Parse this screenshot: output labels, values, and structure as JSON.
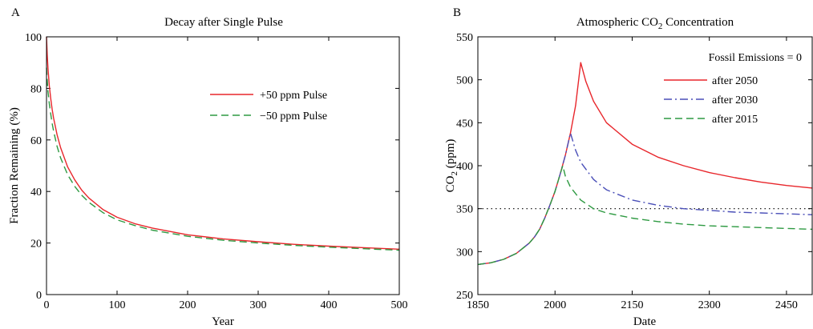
{
  "colors": {
    "red": "#e8262b",
    "green": "#2e9a42",
    "blue": "#4a4fb8",
    "ref": "#000000"
  },
  "chart_data": [
    {
      "type": "line",
      "panel_letter": "A",
      "title": "Decay after Single Pulse",
      "xlabel": "Year",
      "ylabel": "Fraction Remaining (%)",
      "xlim": [
        0,
        500
      ],
      "ylim": [
        0,
        100
      ],
      "xticks": [
        0,
        100,
        200,
        300,
        400,
        500
      ],
      "yticks": [
        0,
        20,
        40,
        60,
        80,
        100
      ],
      "legend_position": "upper-right",
      "series": [
        {
          "name": "+50 ppm Pulse",
          "color": "red",
          "dash": "solid",
          "x": [
            0,
            1,
            2,
            4,
            6,
            8,
            10,
            15,
            20,
            30,
            40,
            50,
            60,
            80,
            100,
            125,
            150,
            200,
            250,
            300,
            350,
            400,
            450,
            500
          ],
          "y": [
            100,
            93,
            88,
            81,
            76,
            72,
            68.5,
            62,
            57,
            49.5,
            44.5,
            40.5,
            37.5,
            33,
            30,
            27.5,
            25.8,
            23.2,
            21.6,
            20.5,
            19.5,
            18.8,
            18.2,
            17.6
          ]
        },
        {
          "name": "−50 ppm Pulse",
          "color": "green",
          "dash": "dashed",
          "x": [
            0,
            1,
            2,
            4,
            6,
            8,
            10,
            15,
            20,
            30,
            40,
            50,
            60,
            80,
            100,
            125,
            150,
            200,
            250,
            300,
            350,
            400,
            450,
            500
          ],
          "y": [
            88,
            83,
            79,
            74,
            70,
            66.5,
            63.5,
            57.5,
            53,
            46.5,
            42,
            38.5,
            35.8,
            31.8,
            29,
            26.8,
            25,
            22.6,
            21.1,
            20,
            19.1,
            18.4,
            17.8,
            17.2
          ]
        }
      ]
    },
    {
      "type": "line",
      "panel_letter": "B",
      "title_main": "Atmospheric CO",
      "title_sub": "2",
      "title_end": " Concentration",
      "xlabel": "Date",
      "ylabel_main": "CO",
      "ylabel_sub": "2",
      "ylabel_end": " (ppm)",
      "xlim": [
        1850,
        2500
      ],
      "ylim": [
        250,
        550
      ],
      "xticks": [
        1850,
        2000,
        2150,
        2300,
        2450
      ],
      "yticks": [
        250,
        300,
        350,
        400,
        450,
        500,
        550
      ],
      "legend_position": "upper-right",
      "legend_title": "Fossil Emissions = 0",
      "reference_line": {
        "y": 350,
        "style": "dotted"
      },
      "series": [
        {
          "name": "after 2050",
          "color": "red",
          "dash": "solid",
          "x": [
            1850,
            1875,
            1900,
            1925,
            1950,
            1960,
            1970,
            1980,
            1990,
            2000,
            2010,
            2020,
            2030,
            2040,
            2050,
            2060,
            2075,
            2100,
            2150,
            2200,
            2250,
            2300,
            2350,
            2400,
            2450,
            2500
          ],
          "y": [
            285,
            287,
            291,
            298,
            310,
            317,
            326,
            339,
            354,
            370,
            390,
            412,
            438,
            470,
            520,
            498,
            475,
            450,
            425,
            410,
            400,
            392,
            386,
            381,
            377,
            374
          ]
        },
        {
          "name": "after 2030",
          "color": "blue",
          "dash": "dashdot",
          "x": [
            1850,
            1875,
            1900,
            1925,
            1950,
            1960,
            1970,
            1980,
            1990,
            2000,
            2010,
            2020,
            2030,
            2040,
            2050,
            2075,
            2100,
            2150,
            2200,
            2250,
            2300,
            2350,
            2400,
            2450,
            2500
          ],
          "y": [
            285,
            287,
            291,
            298,
            310,
            317,
            326,
            339,
            354,
            370,
            390,
            412,
            438,
            418,
            404,
            384,
            372,
            360,
            354,
            350,
            348,
            346,
            345,
            344,
            343
          ]
        },
        {
          "name": "after 2015",
          "color": "green",
          "dash": "dashed",
          "x": [
            1850,
            1875,
            1900,
            1925,
            1950,
            1960,
            1970,
            1980,
            1990,
            2000,
            2010,
            2015,
            2020,
            2030,
            2050,
            2075,
            2100,
            2150,
            2200,
            2250,
            2300,
            2350,
            2400,
            2450,
            2500
          ],
          "y": [
            285,
            287,
            291,
            298,
            310,
            317,
            326,
            339,
            354,
            370,
            390,
            400,
            388,
            375,
            360,
            350,
            345,
            339,
            335,
            332,
            330,
            329,
            328,
            327,
            326
          ]
        }
      ]
    }
  ]
}
